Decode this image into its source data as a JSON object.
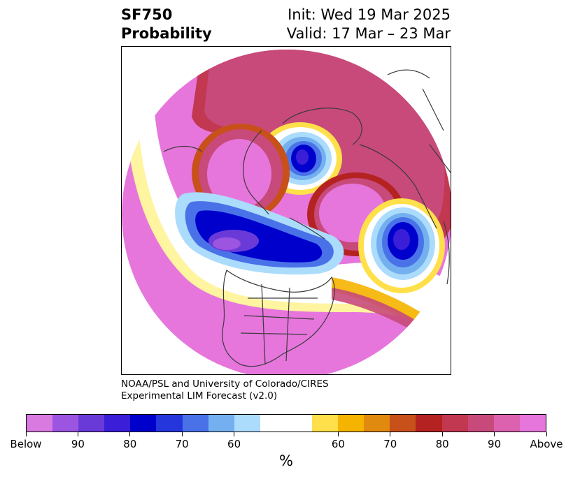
{
  "header": {
    "variable": "SF750",
    "product": "Probability",
    "init": "Init: Wed 19 Mar 2025",
    "valid": "Valid: 17 Mar – 23 Mar"
  },
  "credit": {
    "line1": "NOAA/PSL and University of Colorado/CIRES",
    "line2": "Experimental LIM Forecast (v2.0)"
  },
  "colorbar": {
    "colors": [
      "#d97ae0",
      "#9b55e0",
      "#6a3ad8",
      "#3a1ed8",
      "#0000cc",
      "#2436dc",
      "#4a72e8",
      "#74b0f0",
      "#acdcfc",
      "#ffffff",
      "#ffffff",
      "#ffe04a",
      "#f5b400",
      "#e08a10",
      "#c8501a",
      "#b42222",
      "#c23850",
      "#c84a7a",
      "#dc62b0",
      "#e676dc"
    ],
    "labels": [
      "Below",
      "90",
      "80",
      "70",
      "60",
      "60",
      "70",
      "80",
      "90",
      "Above"
    ],
    "unit": "%"
  },
  "map": {
    "projection": "polar-stereographic",
    "background_fill": "#e676dc"
  }
}
